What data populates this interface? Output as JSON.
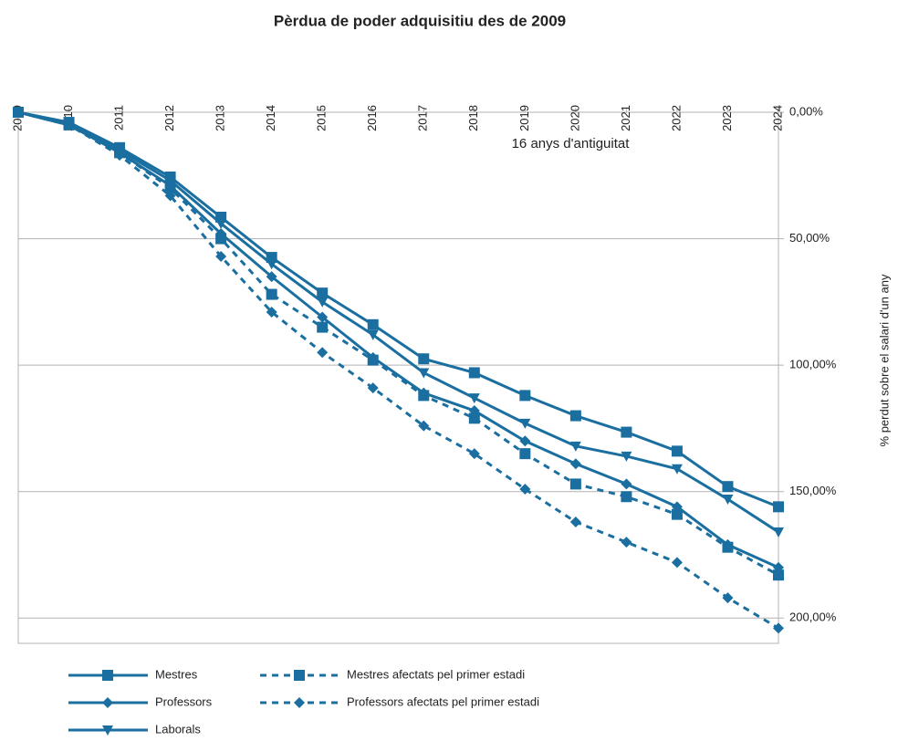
{
  "chart_data": {
    "type": "line",
    "title": "Pèrdua de poder adquisitiu des de 2009",
    "annotation": "16 anys d'antiguitat",
    "y_axis_label": "% perdut sobre el salari d'un any",
    "categories": [
      "2009",
      "2010",
      "2011",
      "2012",
      "2013",
      "2014",
      "2015",
      "2016",
      "2017",
      "2018",
      "2019",
      "2020",
      "2021",
      "2022",
      "2023",
      "2024"
    ],
    "ylim": [
      0,
      210
    ],
    "y_inverted": true,
    "y_axis_side": "right",
    "yticks": [
      {
        "value": 0,
        "label": "0,00%"
      },
      {
        "value": 50,
        "label": "50,00%"
      },
      {
        "value": 100,
        "label": "100,00%"
      },
      {
        "value": 150,
        "label": "150,00%"
      },
      {
        "value": 200,
        "label": "200,00%"
      }
    ],
    "grid": true,
    "legend": "bottom",
    "series": [
      {
        "name": "Mestres",
        "color": "#1a6fa0",
        "marker": "square",
        "dashed": false,
        "values": [
          0,
          4,
          14,
          25.6,
          41.5,
          57.4,
          71.5,
          84,
          97.5,
          103,
          112,
          120,
          126.5,
          134,
          148,
          156
        ]
      },
      {
        "name": "Mestres afectats pel primer estadi",
        "color": "#1a6fa0",
        "marker": "square",
        "dashed": true,
        "values": [
          0,
          5,
          16,
          30,
          50,
          72,
          85,
          98,
          112,
          121,
          135,
          147,
          152,
          159,
          172,
          183
        ]
      },
      {
        "name": "Professors",
        "color": "#1a6fa0",
        "marker": "diamond",
        "dashed": false,
        "values": [
          0,
          5,
          16,
          29,
          48,
          65,
          81,
          97,
          111,
          118,
          130,
          139,
          147,
          156,
          171,
          180
        ]
      },
      {
        "name": "Professors afectats pel primer estadi",
        "color": "#1a6fa0",
        "marker": "diamond",
        "dashed": true,
        "values": [
          0,
          5,
          17,
          33,
          57,
          79,
          95,
          109,
          124,
          135,
          149,
          162,
          170,
          178,
          192,
          204
        ]
      },
      {
        "name": "Laborals",
        "color": "#1a6fa0",
        "marker": "triangle-down",
        "dashed": false,
        "values": [
          0,
          5,
          15,
          27,
          44,
          60,
          75,
          88,
          103,
          113,
          123,
          132,
          136,
          141,
          153,
          166
        ]
      }
    ]
  }
}
